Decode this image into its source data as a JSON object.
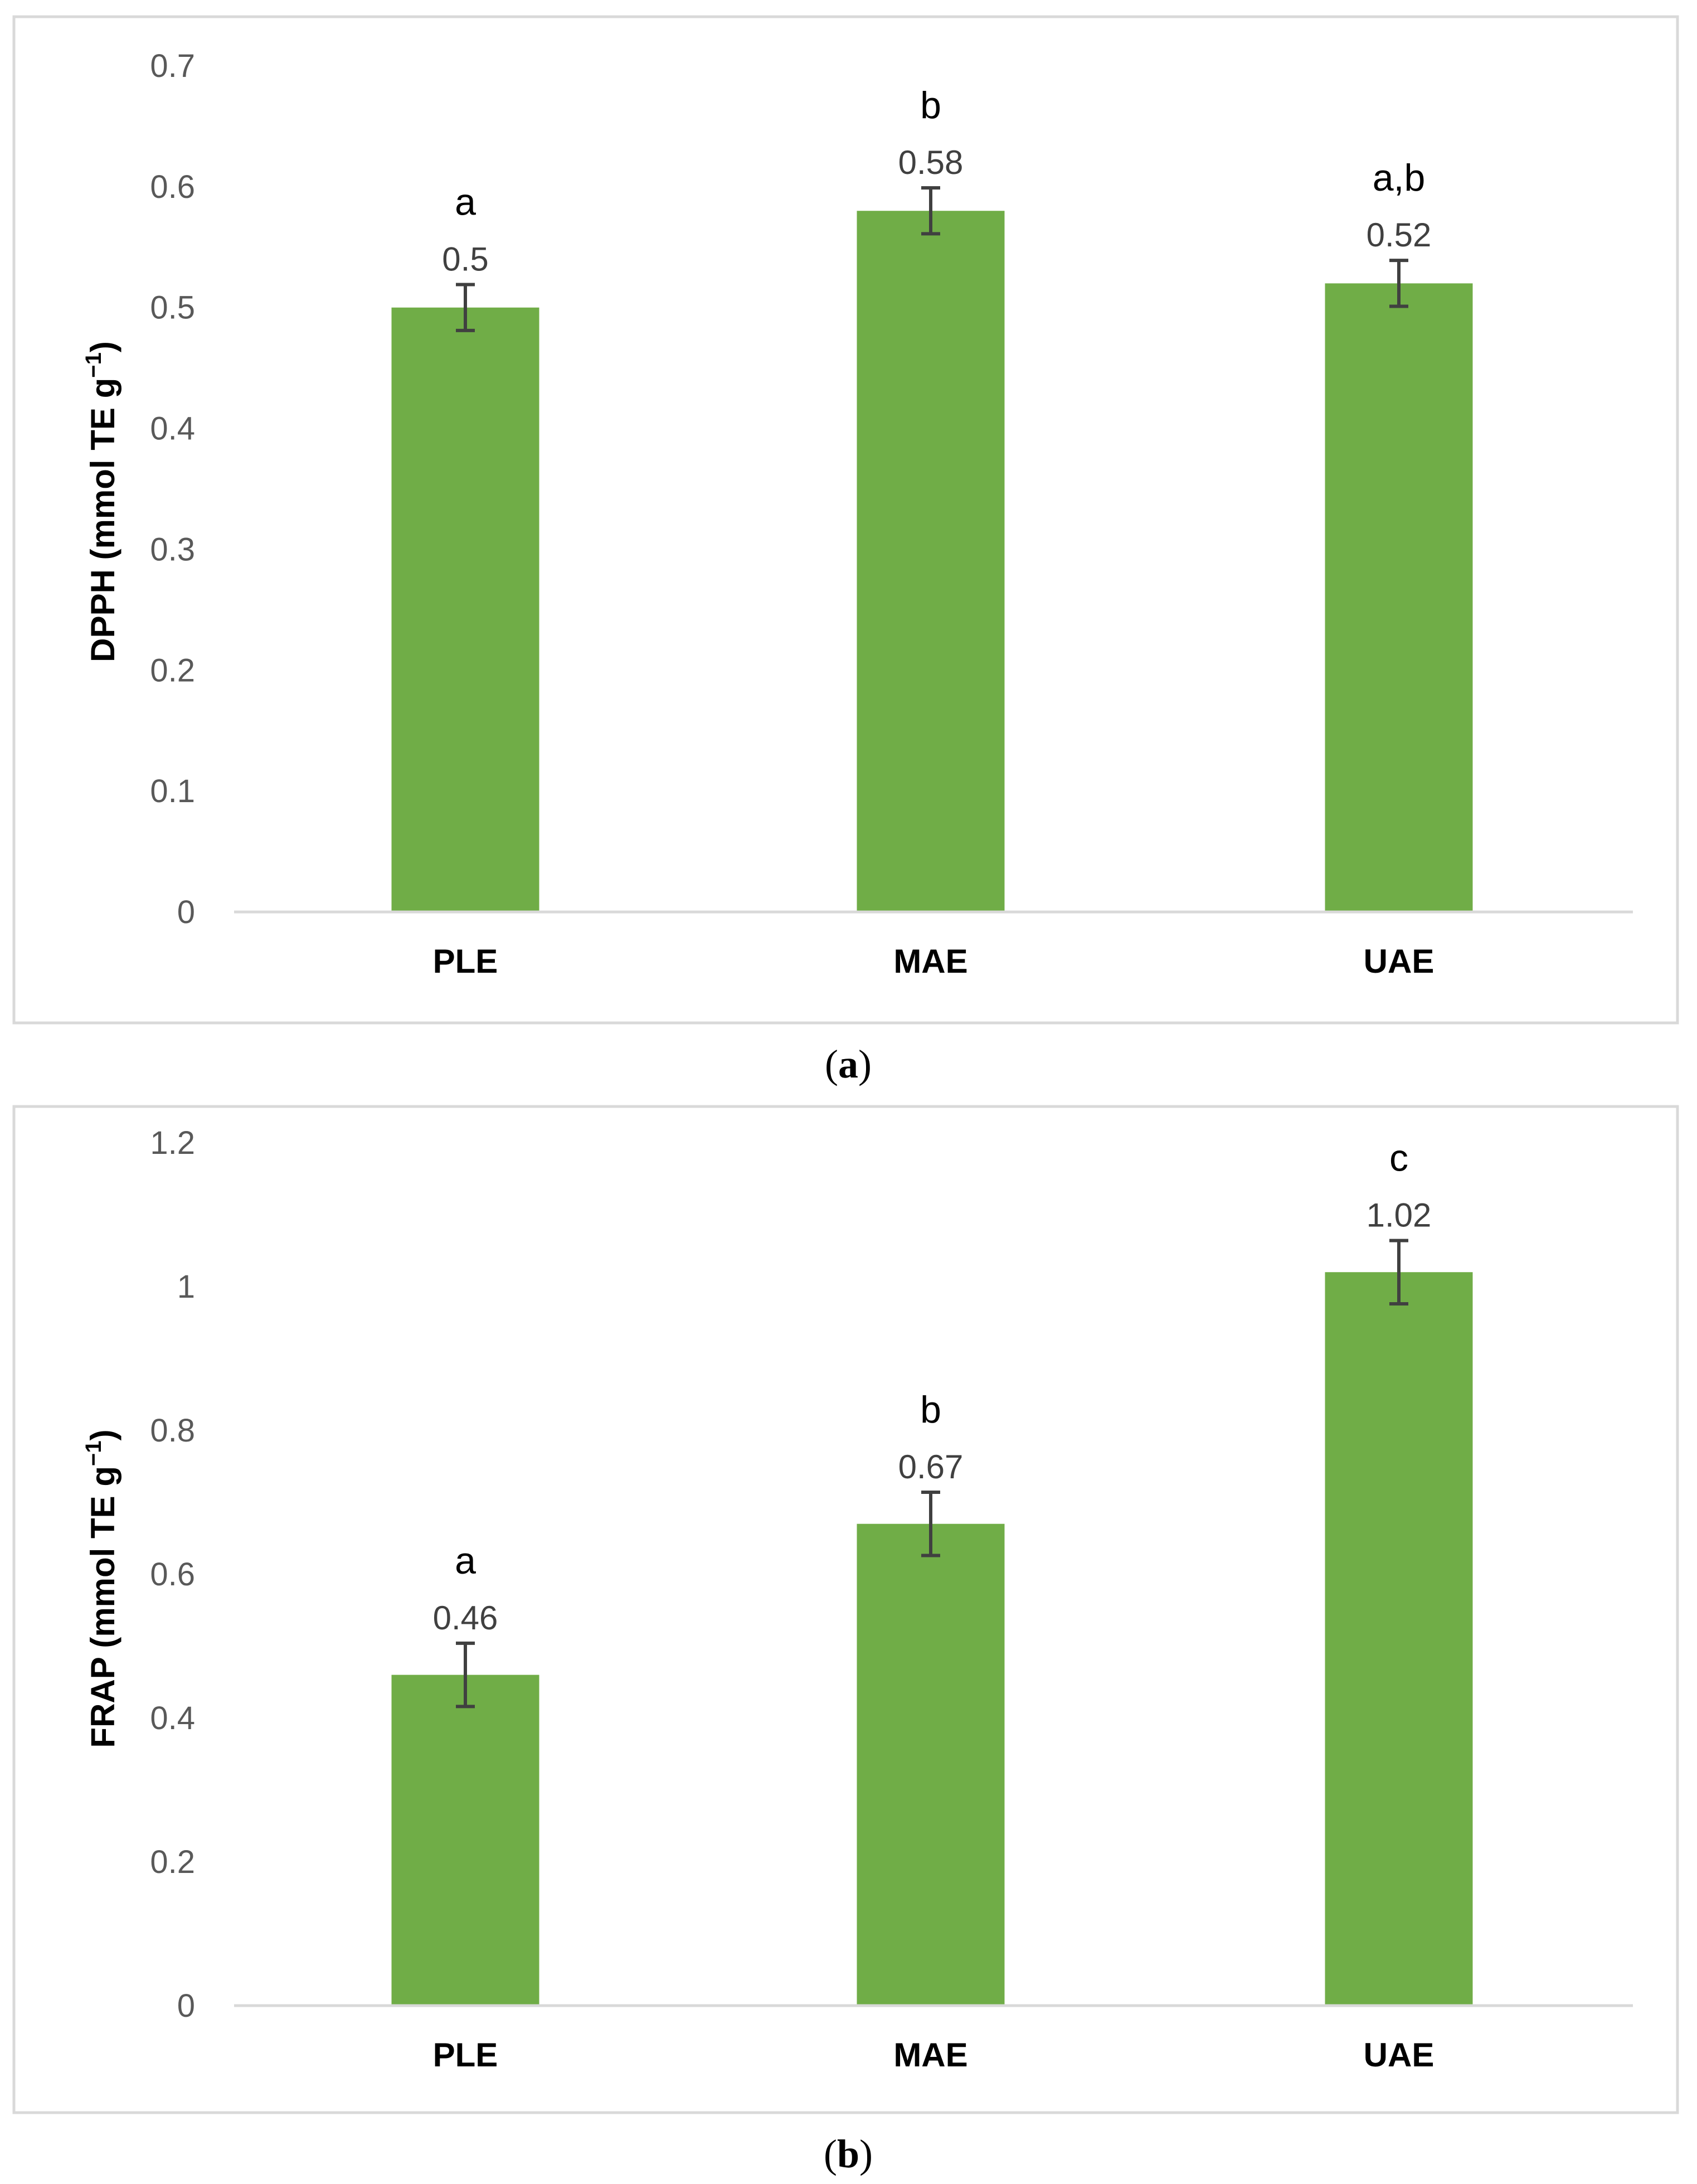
{
  "colors": {
    "bar": "#70ad47",
    "error_bar": "#404040",
    "axis": "#d9d9d9"
  },
  "chart_data": [
    {
      "panel": "a",
      "caption": {
        "open": "(",
        "letter": "a",
        "close": ")"
      },
      "type": "bar",
      "categories": [
        "PLE",
        "MAE",
        "UAE"
      ],
      "values": [
        0.5,
        0.58,
        0.52
      ],
      "value_labels": [
        "0.5",
        "0.58",
        "0.52"
      ],
      "errors": [
        0.019,
        0.019,
        0.019
      ],
      "significance": [
        "a",
        "b",
        "a,b"
      ],
      "ylabel": {
        "text": "DPPH (mmol TE g",
        "sup": "−1",
        "close": ")"
      },
      "ylim": [
        0,
        0.7
      ],
      "yticks": [
        0,
        0.1,
        0.2,
        0.3,
        0.4,
        0.5,
        0.6,
        0.7
      ],
      "ytick_labels": [
        "0",
        "0.1",
        "0.2",
        "0.3",
        "0.4",
        "0.5",
        "0.6",
        "0.7"
      ],
      "grid": false,
      "legend": "none"
    },
    {
      "panel": "b",
      "caption": {
        "open": "(",
        "letter": "b",
        "close": ")"
      },
      "type": "bar",
      "categories": [
        "PLE",
        "MAE",
        "UAE"
      ],
      "values": [
        0.46,
        0.67,
        1.02
      ],
      "value_labels": [
        "0.46",
        "0.67",
        "1.02"
      ],
      "errors": [
        0.044,
        0.044,
        0.044
      ],
      "significance": [
        "a",
        "b",
        "c"
      ],
      "ylabel": {
        "text": "FRAP (mmol TE g",
        "sup": "−1",
        "close": ")"
      },
      "ylim": [
        0,
        1.2
      ],
      "yticks": [
        0,
        0.2,
        0.4,
        0.6,
        0.8,
        1.0,
        1.2
      ],
      "ytick_labels": [
        "0",
        "0.2",
        "0.4",
        "0.6",
        "0.8",
        "1",
        "1.2"
      ],
      "grid": false,
      "legend": "none"
    }
  ]
}
